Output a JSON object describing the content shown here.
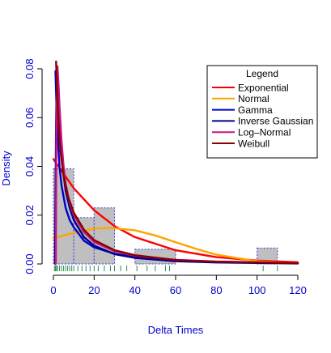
{
  "chart_data": {
    "type": "histogram",
    "title": "",
    "xlabel": "Delta Times",
    "ylabel": "Density",
    "xlim": [
      0,
      120
    ],
    "ylim": [
      0,
      0.08
    ],
    "x_ticks": [
      0,
      20,
      40,
      60,
      80,
      100,
      120
    ],
    "x_tick_labels": [
      "0",
      "20",
      "40",
      "60",
      "80",
      "100",
      "120"
    ],
    "y_ticks": [
      0.0,
      0.02,
      0.04,
      0.06,
      0.08
    ],
    "y_tick_labels": [
      "0.00",
      "0.02",
      "0.04",
      "0.06",
      "0.08"
    ],
    "grid": false,
    "histogram": {
      "bins": [
        {
          "start": 0,
          "end": 10,
          "density": 0.039
        },
        {
          "start": 10,
          "end": 20,
          "density": 0.019
        },
        {
          "start": 20,
          "end": 30,
          "density": 0.023
        },
        {
          "start": 40,
          "end": 60,
          "density": 0.006
        },
        {
          "start": 100,
          "end": 110,
          "density": 0.0065
        }
      ],
      "fill": "#bfbfbf",
      "border": "#3b3bd6"
    },
    "rug": [
      0.5,
      1,
      1.5,
      2,
      3,
      4,
      5,
      6,
      7,
      8,
      9,
      10,
      12,
      14,
      16,
      18,
      20,
      22,
      25,
      28,
      30,
      33,
      36,
      41,
      46,
      50,
      55,
      57,
      103,
      110
    ],
    "legend": {
      "title": "Legend",
      "position": "top-right",
      "entries": [
        {
          "name": "Exponential",
          "color": "#ff0000"
        },
        {
          "name": "Normal",
          "color": "#ffa500"
        },
        {
          "name": "Gamma",
          "color": "#0000cd"
        },
        {
          "name": "Inverse Gaussian",
          "color": "#00008b"
        },
        {
          "name": "Log–Normal",
          "color": "#c71585"
        },
        {
          "name": "Weibull",
          "color": "#8b0000"
        }
      ]
    },
    "series": [
      {
        "name": "Exponential",
        "color": "#ff0000",
        "x": [
          0,
          10,
          20,
          30,
          40,
          60,
          80,
          100,
          120
        ],
        "y": [
          0.043,
          0.031,
          0.022,
          0.0155,
          0.011,
          0.0056,
          0.0028,
          0.0014,
          0.0007
        ]
      },
      {
        "name": "Normal",
        "color": "#ffa500",
        "x": [
          0,
          10,
          20,
          28,
          40,
          50,
          60,
          70,
          80,
          100,
          120
        ],
        "y": [
          0.0105,
          0.0128,
          0.0145,
          0.0148,
          0.0138,
          0.0117,
          0.0089,
          0.0062,
          0.0038,
          0.0011,
          0.0002
        ]
      },
      {
        "name": "Gamma",
        "color": "#0000cd",
        "x": [
          1,
          1.5,
          2,
          3,
          4,
          6,
          8,
          10,
          15,
          20,
          30,
          40,
          60,
          80,
          120
        ],
        "y": [
          0.079,
          0.065,
          0.054,
          0.04,
          0.032,
          0.023,
          0.018,
          0.015,
          0.0095,
          0.0068,
          0.0042,
          0.0028,
          0.0014,
          0.0008,
          0.0003
        ]
      },
      {
        "name": "Inverse Gaussian",
        "color": "#00008b",
        "x": [
          0.8,
          1,
          1.3,
          1.7,
          2.2,
          3,
          4,
          6,
          8,
          10,
          15,
          20,
          30,
          40,
          60,
          80,
          120
        ],
        "y": [
          0.0,
          0.025,
          0.058,
          0.078,
          0.072,
          0.056,
          0.043,
          0.03,
          0.023,
          0.018,
          0.011,
          0.0075,
          0.004,
          0.0025,
          0.0011,
          0.0006,
          0.0002
        ]
      },
      {
        "name": "Log–Normal",
        "color": "#c71585",
        "x": [
          1.2,
          1.5,
          2,
          2.5,
          3,
          4,
          5,
          6,
          8,
          10,
          15,
          20,
          30,
          40,
          60,
          80,
          120
        ],
        "y": [
          0.0,
          0.06,
          0.081,
          0.074,
          0.065,
          0.05,
          0.04,
          0.033,
          0.025,
          0.02,
          0.013,
          0.009,
          0.0052,
          0.0034,
          0.0017,
          0.001,
          0.0004
        ]
      },
      {
        "name": "Weibull",
        "color": "#8b0000",
        "x": [
          1.3,
          1.6,
          2,
          2.6,
          3.5,
          5,
          7,
          10,
          15,
          20,
          30,
          40,
          60,
          80,
          120
        ],
        "y": [
          0.083,
          0.076,
          0.066,
          0.056,
          0.046,
          0.036,
          0.028,
          0.021,
          0.014,
          0.0098,
          0.0056,
          0.0036,
          0.0016,
          0.0009,
          0.0003
        ]
      }
    ]
  }
}
